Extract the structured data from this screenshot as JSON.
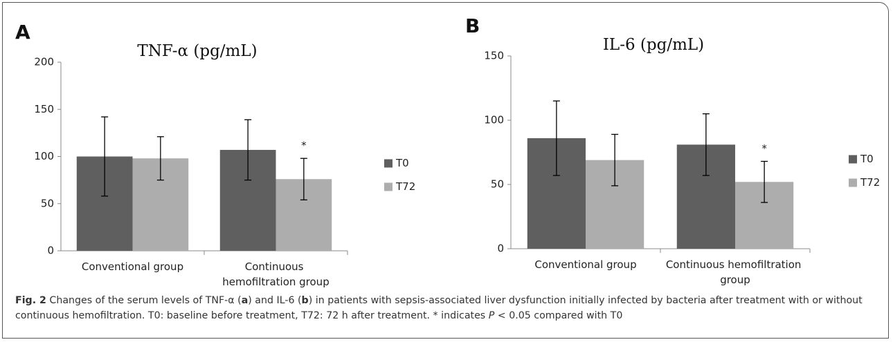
{
  "chart_data": [
    {
      "type": "bar",
      "panel": "A",
      "title": "TNF-α (pg/mL)",
      "categories": [
        "Conventional group",
        "Continuous hemofiltration group"
      ],
      "series": [
        {
          "name": "T0",
          "color": "#5f5f5f",
          "values": [
            100,
            107
          ],
          "errors": [
            42,
            32
          ]
        },
        {
          "name": "T72",
          "color": "#adadad",
          "values": [
            98,
            76
          ],
          "errors": [
            23,
            22
          ]
        }
      ],
      "ylim": [
        0,
        200
      ],
      "yticks": [
        0,
        50,
        100,
        150,
        200
      ],
      "grid": false,
      "legend": "right",
      "annotations": [
        {
          "text": "*",
          "category": 1,
          "series": 1
        }
      ]
    },
    {
      "type": "bar",
      "panel": "B",
      "title": "IL-6 (pg/mL)",
      "categories": [
        "Conventional group",
        "Continuous hemofiltration group"
      ],
      "series": [
        {
          "name": "T0",
          "color": "#5f5f5f",
          "values": [
            86,
            81
          ],
          "errors": [
            29,
            24
          ]
        },
        {
          "name": "T72",
          "color": "#adadad",
          "values": [
            69,
            52
          ],
          "errors": [
            20,
            16
          ]
        }
      ],
      "ylim": [
        0,
        150
      ],
      "yticks": [
        0,
        50,
        100,
        150
      ],
      "grid": false,
      "legend": "right",
      "annotations": [
        {
          "text": "*",
          "category": 1,
          "series": 1
        }
      ]
    }
  ],
  "caption": {
    "runs": [
      {
        "text": "Fig. 2",
        "style": "bold"
      },
      {
        "text": " Changes of the serum levels of TNF-α (",
        "style": "normal"
      },
      {
        "text": "a",
        "style": "bold"
      },
      {
        "text": ") and IL-6 (",
        "style": "normal"
      },
      {
        "text": "b",
        "style": "bold"
      },
      {
        "text": ") in patients with sepsis-associated liver dysfunction initially infected by bacteria after treatment with or without continuous hemofiltration. T0: baseline before treatment, T72: 72 h after treatment. * indicates ",
        "style": "normal"
      },
      {
        "text": "P",
        "style": "italic"
      },
      {
        "text": " < 0.05 compared with T0",
        "style": "normal"
      }
    ]
  }
}
